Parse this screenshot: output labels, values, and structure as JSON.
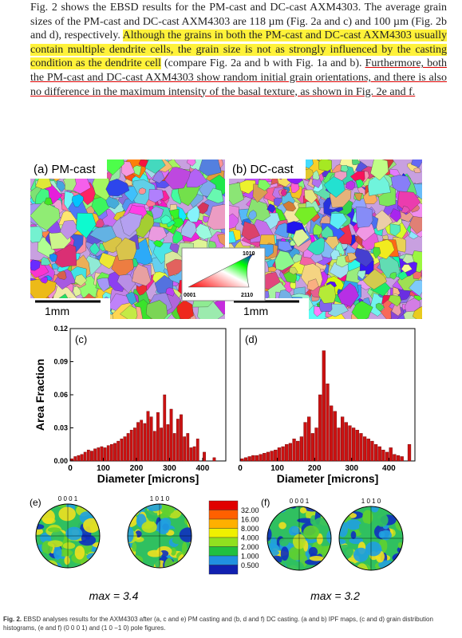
{
  "paragraph": {
    "segments": [
      "Fig. 2 shows the EBSD results for the PM-cast and DC-cast AXM4303. The average grain sizes of the PM-cast and DC-cast AXM4303 are 118 µm (Fig. 2a and c) and 100 µm (Fig. 2b and d), respectively. ",
      "Although the grains in both the PM-cast and DC-cast AXM4303 usually contain multiple dendrite cells, the grain size is not as strongly influenced by the casting condition as the dendrite cell",
      " (compare Fig. 2a and b with Fig. 1a and b). ",
      "Furthermore, both the PM-cast and DC-cast AXM4303 show random initial grain orientations, and there is also no difference in the maximum intensity of the basal texture, as shown in Fig. 2e and f."
    ]
  },
  "figure": {
    "maps": [
      {
        "label": "(a) PM-cast",
        "scale": "1mm"
      },
      {
        "label": "(b) DC-cast",
        "scale": "1mm"
      }
    ],
    "ipf_labels": [
      "1010",
      "0001",
      "2110"
    ],
    "pole_figures": [
      {
        "label": "(e)",
        "planes": [
          "0 0 0 1",
          "1 0 1 0"
        ],
        "max": "max = 3.4"
      },
      {
        "label": "(f)",
        "planes": [
          "0 0 0 1",
          "1 0 1 0"
        ],
        "max": "max = 3.2"
      }
    ],
    "color_scale": [
      "32.00",
      "16.00",
      "8.000",
      "4.000",
      "2.000",
      "1.000",
      "0.500"
    ]
  },
  "chart_data": [
    {
      "type": "histogram",
      "annotation": "(c)",
      "xlabel": "Diameter [microns]",
      "ylabel": "Area Fraction",
      "color": "#cc1111",
      "bins": [
        0,
        10,
        20,
        30,
        40,
        50,
        60,
        70,
        80,
        90,
        100,
        110,
        120,
        130,
        140,
        150,
        160,
        170,
        180,
        190,
        200,
        210,
        220,
        230,
        240,
        250,
        260,
        270,
        280,
        290,
        300,
        310,
        320,
        330,
        340,
        350,
        360,
        370,
        380,
        390,
        400,
        410,
        420,
        430,
        440,
        450,
        460
      ],
      "values": [
        0.002,
        0.004,
        0.005,
        0.006,
        0.008,
        0.01,
        0.009,
        0.011,
        0.012,
        0.013,
        0.012,
        0.014,
        0.015,
        0.016,
        0.018,
        0.02,
        0.022,
        0.025,
        0.028,
        0.03,
        0.035,
        0.037,
        0.034,
        0.045,
        0.04,
        0.027,
        0.044,
        0.03,
        0.06,
        0.033,
        0.047,
        0.025,
        0.038,
        0.042,
        0.022,
        0.025,
        0.012,
        0.013,
        0.02,
        0,
        0.008,
        0,
        0,
        0.003,
        0,
        0
      ],
      "xlim": [
        0,
        470
      ],
      "xticks": [
        0,
        100,
        200,
        300,
        400
      ],
      "ylim": [
        0,
        0.12
      ],
      "yticks": [
        {
          "value": 0,
          "label": "0.00"
        },
        {
          "value": 0.03,
          "label": "0.03"
        },
        {
          "value": 0.06,
          "label": "0.06"
        },
        {
          "value": 0.09,
          "label": "0.09"
        },
        0.12
      ]
    },
    {
      "type": "histogram",
      "annotation": "(d)",
      "xlabel": "Diameter [microns]",
      "color": "#cc1111",
      "bins": [
        0,
        10,
        20,
        30,
        40,
        50,
        60,
        70,
        80,
        90,
        100,
        110,
        120,
        130,
        140,
        150,
        160,
        170,
        180,
        190,
        200,
        210,
        220,
        230,
        240,
        250,
        260,
        270,
        280,
        290,
        300,
        310,
        320,
        330,
        340,
        350,
        360,
        370,
        380,
        390,
        400,
        410,
        420,
        430,
        440,
        450,
        460
      ],
      "values": [
        0.002,
        0.003,
        0.004,
        0.005,
        0.005,
        0.006,
        0.007,
        0.008,
        0.009,
        0.01,
        0.012,
        0.013,
        0.015,
        0.016,
        0.02,
        0.018,
        0.022,
        0.035,
        0.04,
        0.025,
        0.03,
        0.06,
        0.1,
        0.07,
        0.05,
        0.045,
        0.03,
        0.04,
        0.035,
        0.032,
        0.03,
        0.028,
        0.025,
        0.022,
        0.02,
        0.018,
        0.015,
        0.013,
        0.01,
        0.008,
        0.012,
        0.006,
        0.005,
        0.004,
        0,
        0.015
      ],
      "xlim": [
        0,
        470
      ],
      "xticks": [
        0,
        100,
        200,
        300,
        400
      ],
      "ylim": [
        0,
        0.12
      ]
    }
  ],
  "caption": {
    "label": "Fig. 2.",
    "text": " EBSD analyses results for the AXM4303 after (a, c and e) PM casting and (b, d and f) DC casting. (a and b) IPF maps, (c and d) grain distribution histograms, (e and f) (0 0 0 1) and (1 0 −1 0) pole figures."
  }
}
